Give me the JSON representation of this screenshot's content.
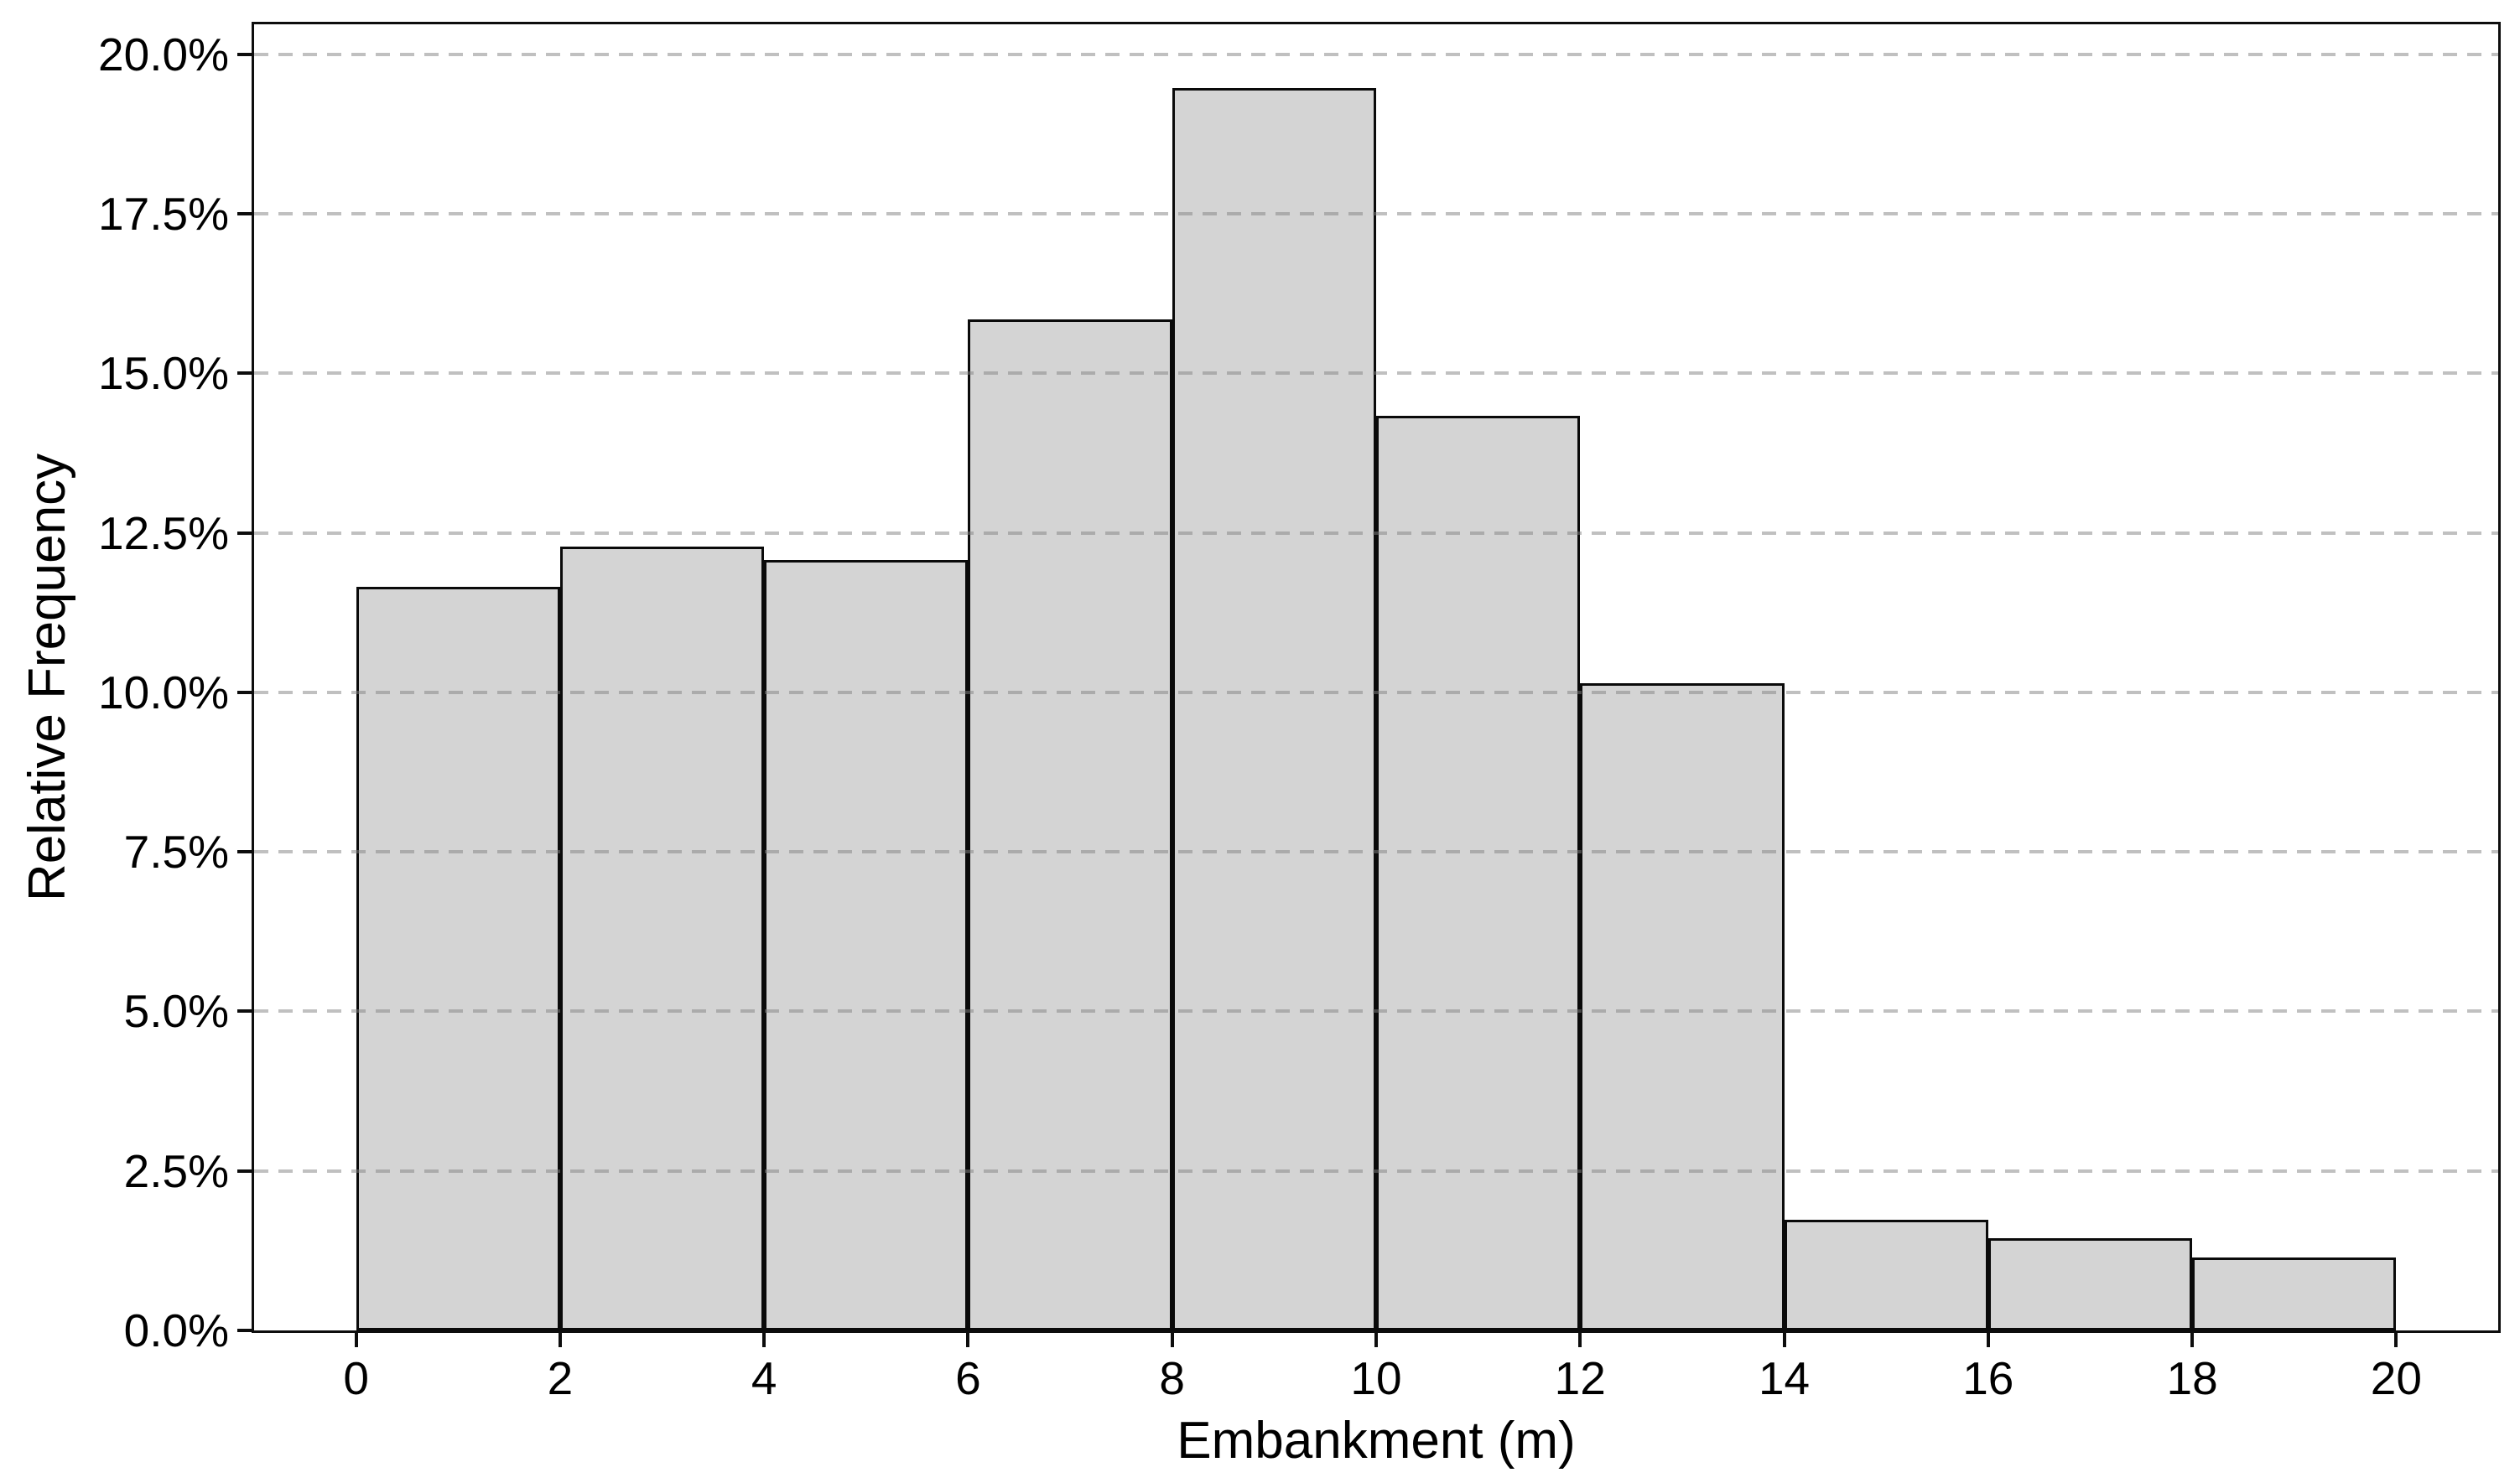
{
  "chart_data": {
    "type": "bar",
    "subtype": "histogram",
    "title": "",
    "xlabel": "Embankment (m)",
    "ylabel": "Relative Frequency",
    "bin_edges": [
      0,
      2,
      4,
      6,
      8,
      10,
      12,
      14,
      16,
      18,
      20
    ],
    "categories": [
      "0-2",
      "2-4",
      "4-6",
      "6-8",
      "8-10",
      "10-12",
      "12-14",
      "14-16",
      "16-18",
      "18-20"
    ],
    "values_percent": [
      11.65,
      12.28,
      12.07,
      15.85,
      19.47,
      14.33,
      10.14,
      1.73,
      1.44,
      1.14
    ],
    "xlim": [
      -1,
      21
    ],
    "ylim_percent": [
      0,
      20.47
    ],
    "x_ticks": [
      0,
      2,
      4,
      6,
      8,
      10,
      12,
      14,
      16,
      18,
      20
    ],
    "x_tick_labels": [
      "0",
      "2",
      "4",
      "6",
      "8",
      "10",
      "12",
      "14",
      "16",
      "18",
      "20"
    ],
    "y_ticks_percent": [
      0,
      2.5,
      5,
      7.5,
      10,
      12.5,
      15,
      17.5,
      20
    ],
    "y_tick_labels": [
      "0.0%",
      "2.5%",
      "5.0%",
      "7.5%",
      "10.0%",
      "12.5%",
      "15.0%",
      "17.5%",
      "20.0%"
    ],
    "grid": "horizontal-dashed",
    "legend": "none",
    "colors": {
      "bar_fill": "#d4d4d4",
      "bar_edge": "#0a0a0a",
      "grid_line": "#c9c9c9",
      "axis_line": "#0d0d0d",
      "background": "#ffffff",
      "text": "#000000"
    }
  }
}
